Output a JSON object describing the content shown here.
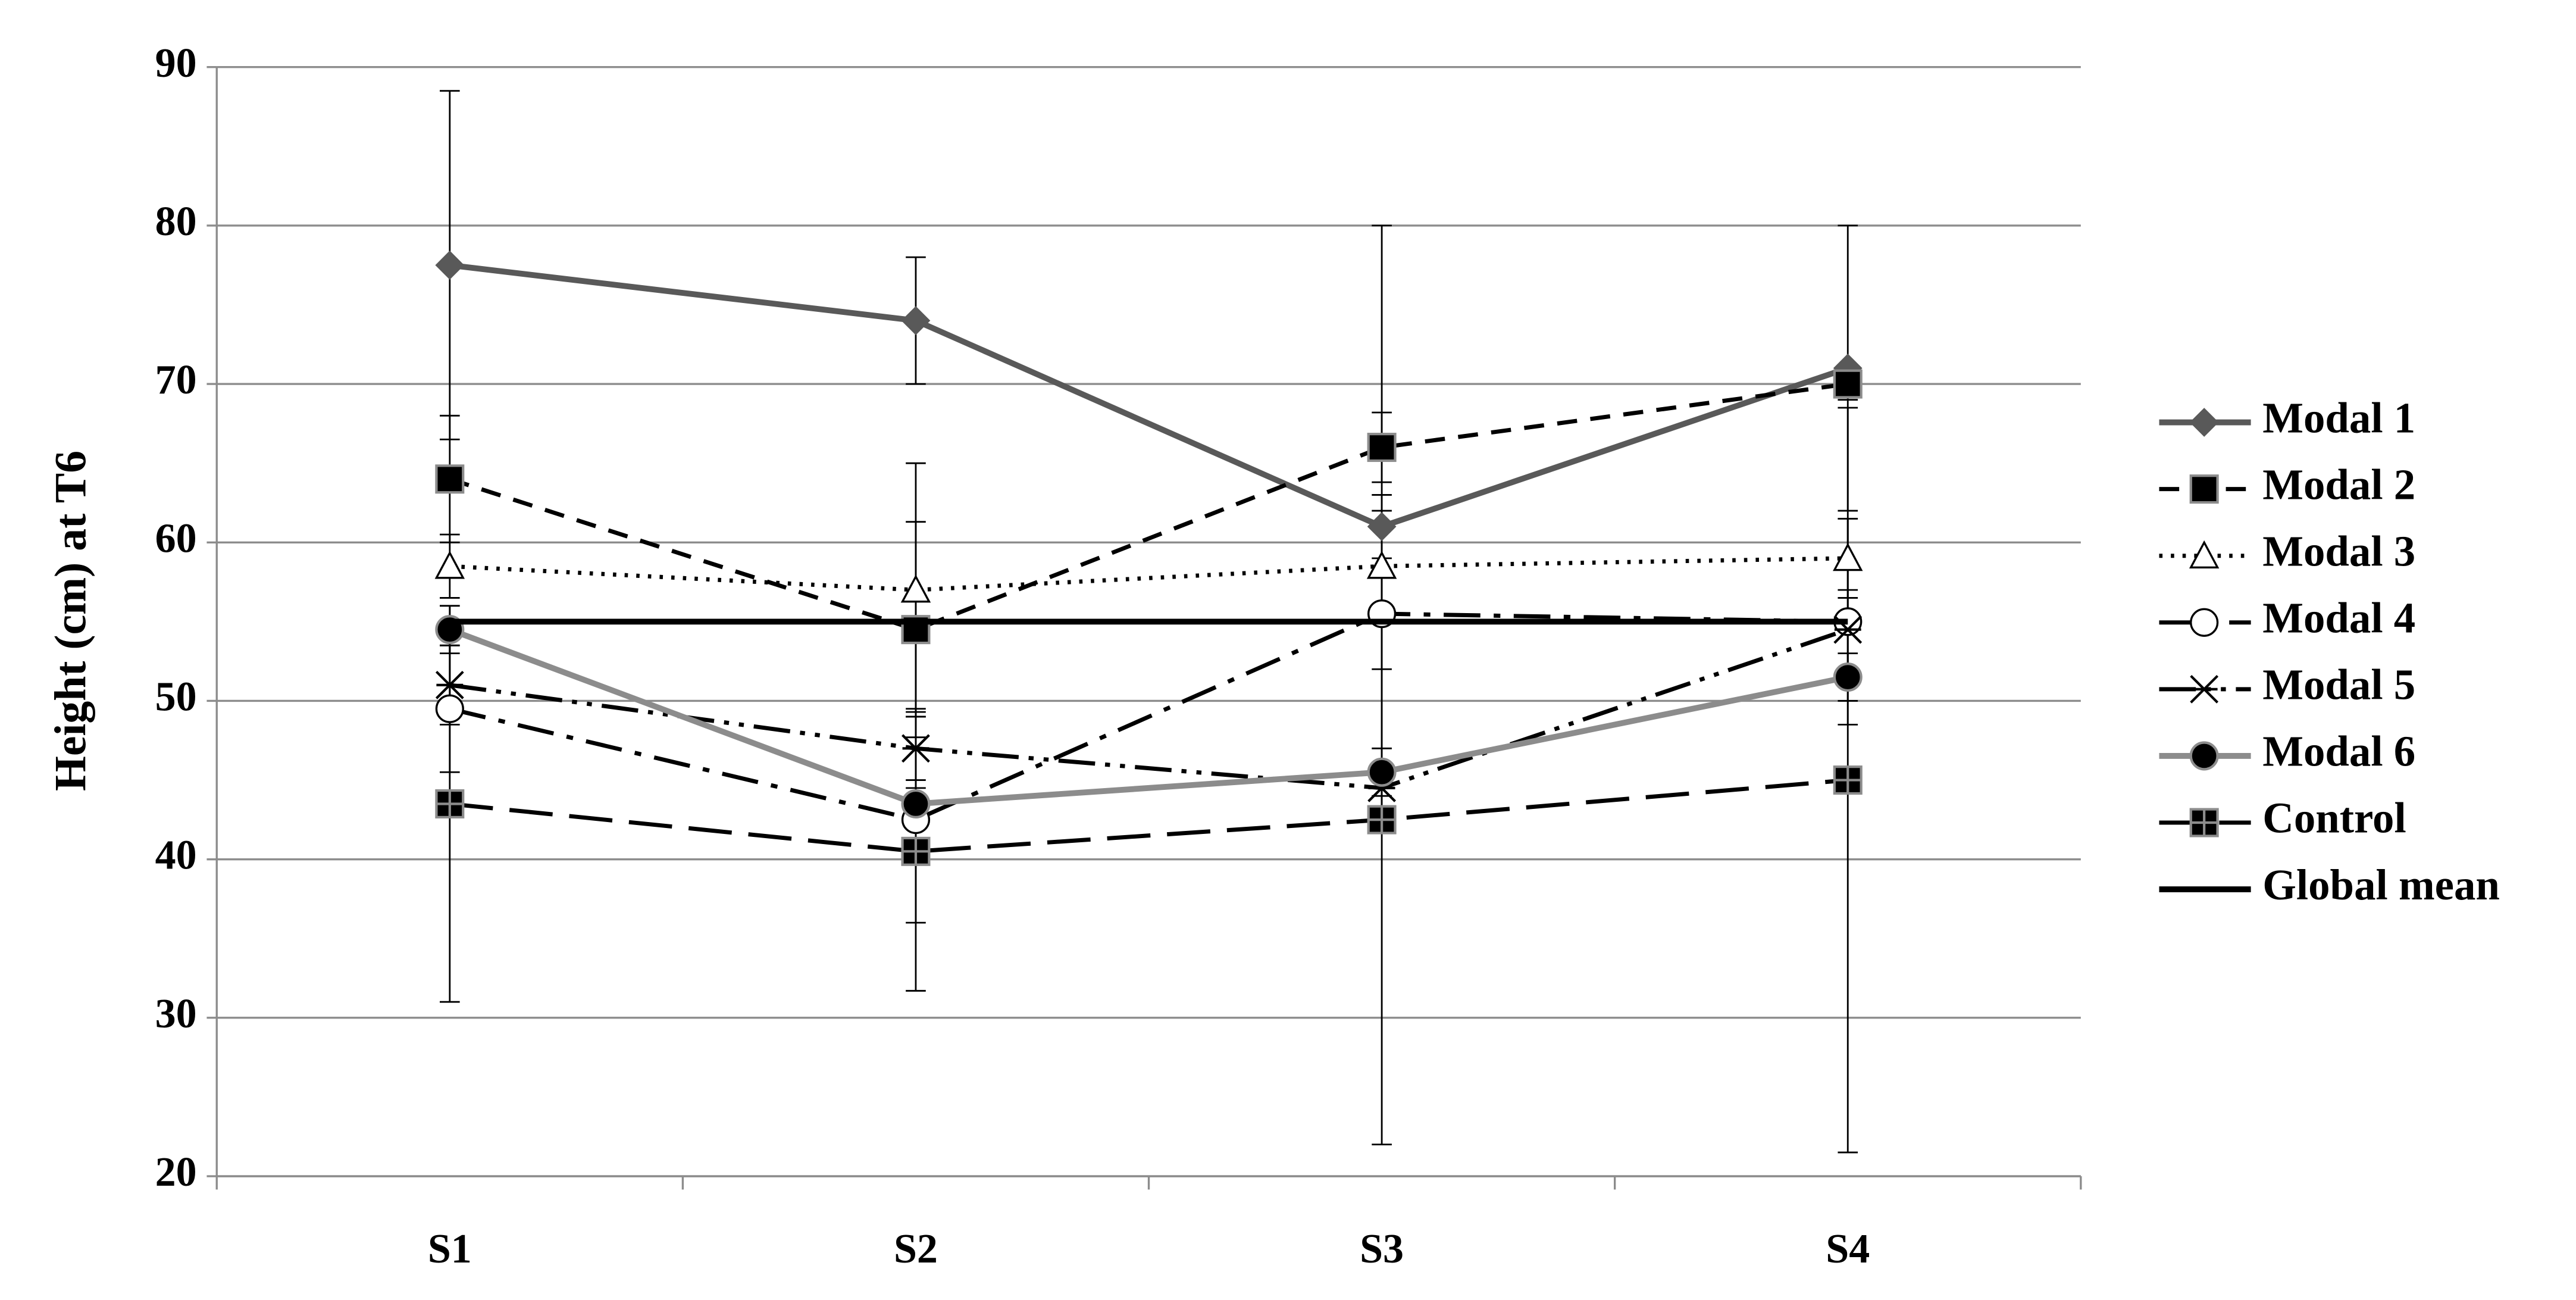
{
  "chart_data": {
    "type": "line",
    "y_label": "Height (cm) at T6",
    "categories": [
      "S1",
      "S2",
      "S3",
      "S4"
    ],
    "ylim": [
      20,
      90
    ],
    "yticks": [
      20,
      30,
      40,
      50,
      60,
      70,
      80,
      90
    ],
    "grid": true,
    "legend": "right",
    "series": [
      {
        "name": "Modal 1",
        "color": "#595959",
        "dash": "none",
        "marker": "diamond",
        "width": 3.5,
        "values": [
          77.5,
          74,
          61,
          71
        ],
        "errors": [
          11,
          4,
          19,
          9
        ]
      },
      {
        "name": "Modal 2",
        "color": "#000000",
        "dash": "12,8",
        "marker": "square",
        "width": 2.5,
        "values": [
          64,
          54.5,
          66,
          70
        ],
        "errors": [
          4,
          6.8,
          2.2,
          1
        ]
      },
      {
        "name": "Modal 3",
        "color": "#000000",
        "dash": "2,5",
        "marker": "triangle",
        "width": 2.5,
        "values": [
          58.5,
          57,
          58.5,
          59
        ],
        "errors": [
          2,
          8,
          3.5,
          2.5
        ]
      },
      {
        "name": "Modal 4",
        "color": "#000000",
        "dash": "22,8,4,8",
        "marker": "circle-open",
        "width": 2.5,
        "values": [
          49.5,
          42.5,
          55.5,
          55
        ],
        "errors": [
          4,
          6.5,
          3.5,
          6.5
        ]
      },
      {
        "name": "Modal 5",
        "color": "#000000",
        "dash": "22,6,3,6,3,6",
        "marker": "star",
        "width": 2.5,
        "values": [
          51,
          47,
          44.5,
          54.5
        ],
        "errors": [
          2.5,
          2.5,
          1.5,
          2.5
        ]
      },
      {
        "name": "Modal 6",
        "color": "#8c8c8c",
        "dash": "none",
        "marker": "circle",
        "width": 3.5,
        "values": [
          54.5,
          43.5,
          45.5,
          51.5
        ],
        "errors": [
          1.5,
          1.5,
          1.5,
          1.5
        ]
      },
      {
        "name": "Control",
        "color": "#000000",
        "dash": "26,10",
        "marker": "square-cross",
        "width": 2.5,
        "values": [
          43.5,
          40.5,
          42.5,
          45
        ],
        "errors": [
          12.5,
          8.8,
          20.5,
          23.5
        ]
      },
      {
        "name": "Global mean",
        "color": "#000000",
        "dash": "none",
        "marker": "none",
        "width": 3.5,
        "values": [
          55,
          55,
          55,
          55
        ]
      }
    ]
  }
}
